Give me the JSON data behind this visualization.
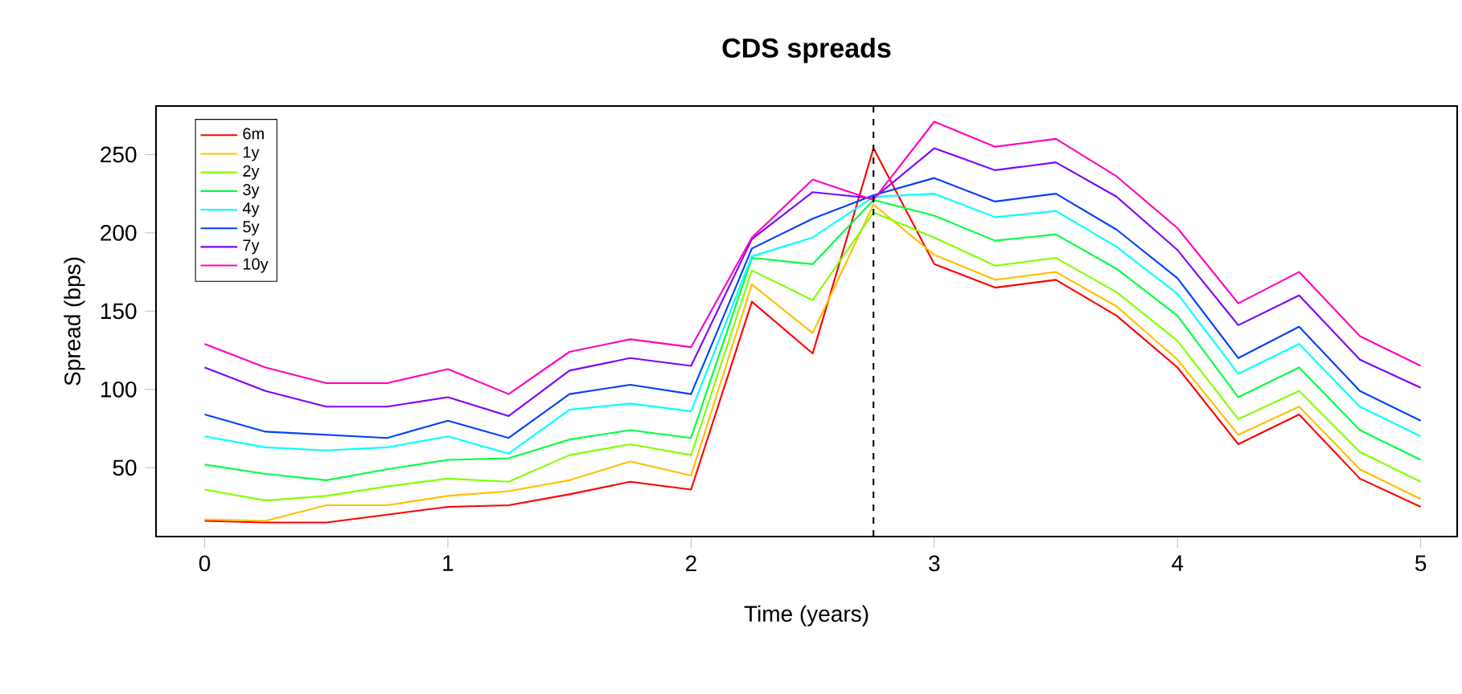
{
  "chart_data": {
    "type": "line",
    "title": "CDS spreads",
    "xlabel": "Time (years)",
    "ylabel": "Spread (bps)",
    "x": [
      0,
      0.25,
      0.5,
      0.75,
      1,
      1.25,
      1.5,
      1.75,
      2,
      2.25,
      2.5,
      2.75,
      3,
      3.25,
      3.5,
      3.75,
      4,
      4.25,
      4.5,
      4.75,
      5
    ],
    "series": [
      {
        "name": "6m",
        "color": "#ff0000",
        "values": [
          16,
          15,
          15,
          20,
          25,
          26,
          33,
          41,
          36,
          156,
          123,
          254,
          180,
          165,
          170,
          147,
          114,
          65,
          84,
          43,
          25
        ]
      },
      {
        "name": "1y",
        "color": "#ffbf00",
        "values": [
          17,
          16,
          26,
          26,
          32,
          35,
          42,
          54,
          45,
          167,
          136,
          218,
          186,
          170,
          175,
          153,
          119,
          71,
          89,
          49,
          30
        ]
      },
      {
        "name": "2y",
        "color": "#80ff00",
        "values": [
          36,
          29,
          32,
          38,
          43,
          41,
          58,
          65,
          58,
          176,
          157,
          213,
          197,
          179,
          184,
          162,
          131,
          81,
          99,
          60,
          41
        ]
      },
      {
        "name": "3y",
        "color": "#00ff40",
        "values": [
          52,
          46,
          42,
          49,
          55,
          56,
          68,
          74,
          69,
          184,
          180,
          221,
          211,
          195,
          199,
          177,
          147,
          95,
          114,
          74,
          55
        ]
      },
      {
        "name": "4y",
        "color": "#00ffff",
        "values": [
          70,
          63,
          61,
          63,
          70,
          59,
          87,
          91,
          86,
          185,
          197,
          223,
          225,
          210,
          214,
          191,
          161,
          110,
          129,
          89,
          70
        ]
      },
      {
        "name": "5y",
        "color": "#0040ff",
        "values": [
          84,
          73,
          71,
          69,
          80,
          69,
          97,
          103,
          97,
          190,
          209,
          224,
          235,
          220,
          225,
          202,
          171,
          120,
          140,
          99,
          80
        ]
      },
      {
        "name": "7y",
        "color": "#8000ff",
        "values": [
          114,
          99,
          89,
          89,
          95,
          83,
          112,
          120,
          115,
          196,
          226,
          222,
          254,
          240,
          245,
          223,
          189,
          141,
          160,
          119,
          101
        ]
      },
      {
        "name": "10y",
        "color": "#ff00bf",
        "values": [
          129,
          114,
          104,
          104,
          113,
          97,
          124,
          132,
          127,
          197,
          234,
          221,
          271,
          255,
          260,
          236,
          203,
          155,
          175,
          134,
          115
        ]
      }
    ],
    "xlim": [
      -0.2,
      5.15
    ],
    "ylim": [
      6,
      281
    ],
    "xticks": [
      0,
      1,
      2,
      3,
      4,
      5
    ],
    "yticks": [
      50,
      100,
      150,
      200,
      250
    ],
    "ref_lines": [
      {
        "axis": "x",
        "value": 2.75,
        "color": "#000000",
        "line_style": "dashed"
      }
    ],
    "legend": "top left",
    "grid": false,
    "marker": "none",
    "line_style": "solid"
  }
}
